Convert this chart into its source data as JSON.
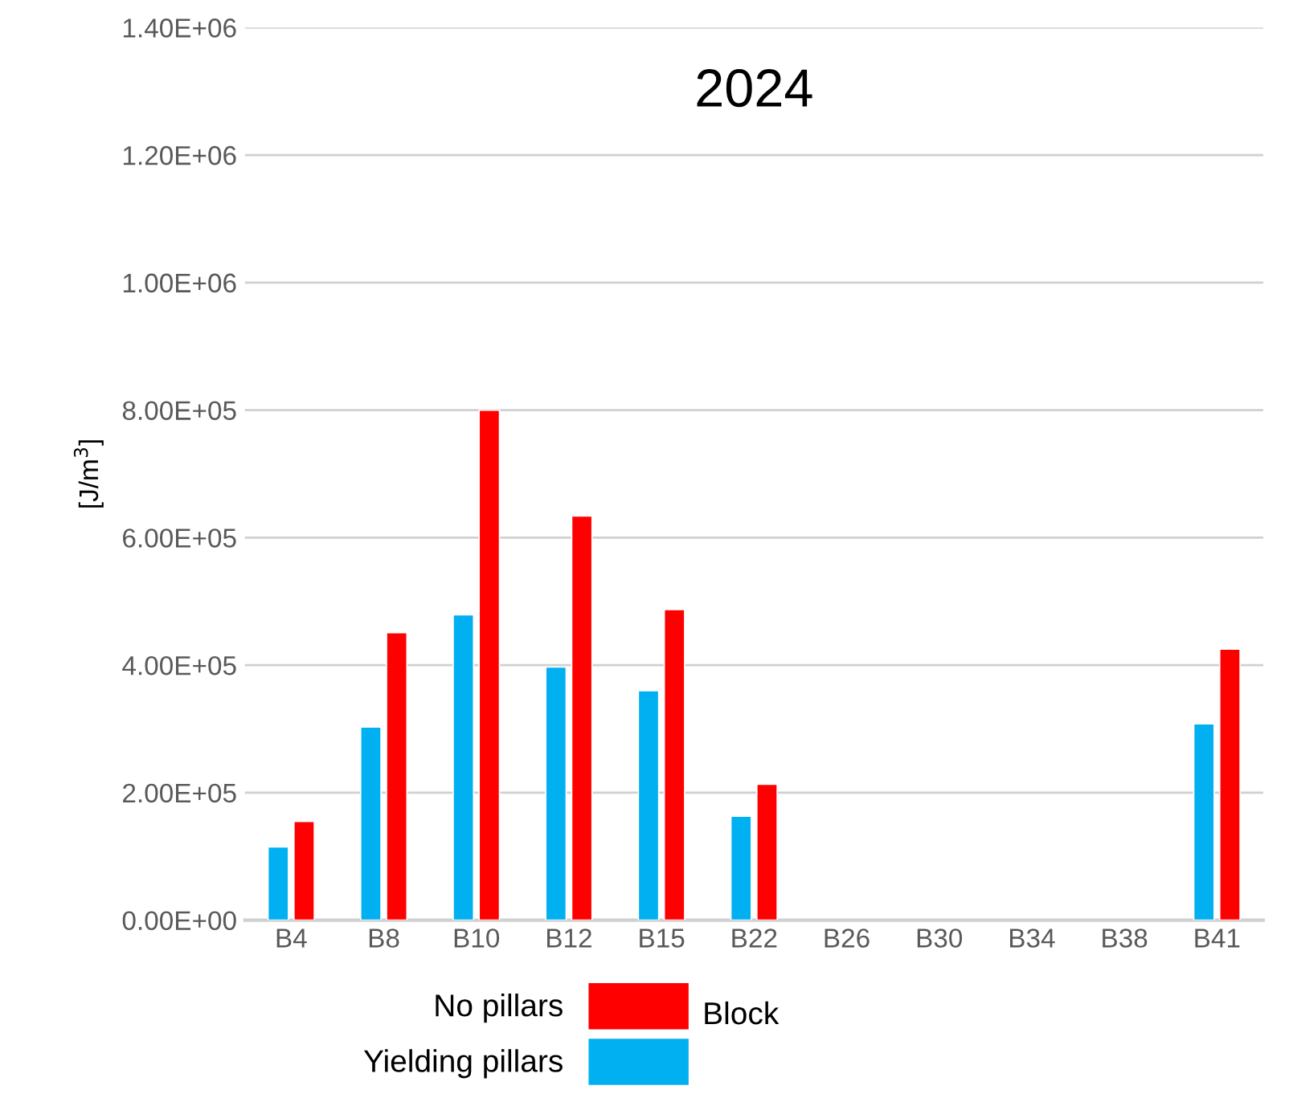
{
  "chart_data": {
    "type": "bar",
    "title": "2024",
    "ylabel": "[J/m$^{3}$]",
    "legend_title": "Block",
    "categories": [
      "B4",
      "B8",
      "B10",
      "B12",
      "B15",
      "B22",
      "B26",
      "B30",
      "B34",
      "B38",
      "B41"
    ],
    "series": [
      {
        "name": "Yielding pillars",
        "color": "#00b0f0",
        "values": [
          115000,
          303000,
          479000,
          397000,
          360000,
          163000,
          null,
          null,
          null,
          null,
          308000
        ]
      },
      {
        "name": "No pillars",
        "color": "#ff0000",
        "values": [
          155000,
          451000,
          800000,
          634000,
          487000,
          213000,
          null,
          null,
          null,
          null,
          425000
        ]
      }
    ],
    "ylim": [
      0,
      1400000
    ],
    "yticks": [
      {
        "value": 0,
        "label": "0.00E+00"
      },
      {
        "value": 200000,
        "label": "2.00E+05"
      },
      {
        "value": 400000,
        "label": "4.00E+05"
      },
      {
        "value": 600000,
        "label": "6.00E+05"
      },
      {
        "value": 800000,
        "label": "8.00E+05"
      },
      {
        "value": 1000000,
        "label": "1.00E+06"
      },
      {
        "value": 1200000,
        "label": "1.20E+06"
      },
      {
        "value": 1400000,
        "label": "1.40E+06"
      }
    ],
    "grid": "y",
    "legend": "bottom"
  }
}
